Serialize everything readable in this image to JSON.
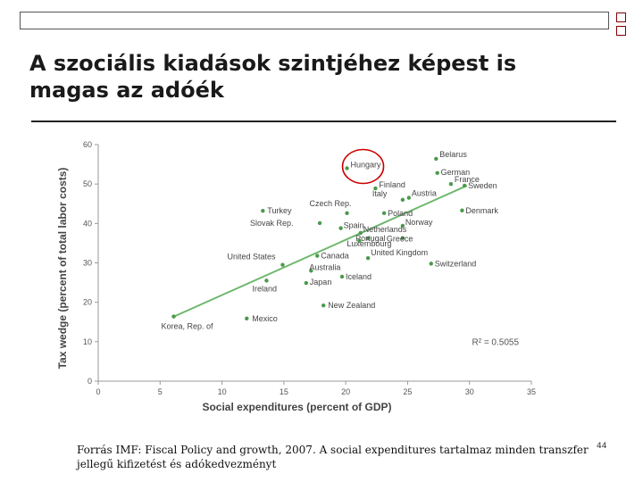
{
  "slide": {
    "title_line1": "A szociális kiadások szintjéhez képest is",
    "title_line2": "magas az adóék",
    "source": "Forrás IMF: Fiscal Policy and growth, 2007. A social expenditures tartalmaz minden transzfer jellegű kifizetést és adókedvezményt",
    "page_number": "44"
  },
  "chart_data": {
    "type": "scatter",
    "xlabel": "Social expenditures (percent of GDP)",
    "ylabel": "Tax wedge (percent of total labor costs)",
    "xlim": [
      0,
      35
    ],
    "ylim": [
      0,
      60
    ],
    "x_ticks": [
      0,
      5,
      10,
      15,
      20,
      25,
      30,
      35
    ],
    "y_ticks": [
      0,
      10,
      20,
      30,
      40,
      50,
      60
    ],
    "annotation": "R² = 0.5055",
    "point_color": "#4a9a4a",
    "trend_color": "#6db86d",
    "highlight_color": "#cc0000",
    "highlight": "Hungary",
    "trendline": {
      "x": [
        6.2,
        29.8
      ],
      "y": [
        16.5,
        49.6
      ]
    },
    "points": [
      {
        "label": "Belarus",
        "x": 27.3,
        "y": 56.4
      },
      {
        "label": "Hungary",
        "x": 20.1,
        "y": 54.0
      },
      {
        "label": "German",
        "x": 27.4,
        "y": 52.8
      },
      {
        "label": "France",
        "x": 28.5,
        "y": 50.0
      },
      {
        "label": "Sweden",
        "x": 29.6,
        "y": 49.6
      },
      {
        "label": "Finland",
        "x": 22.4,
        "y": 48.9
      },
      {
        "label": "Italy",
        "x": 24.6,
        "y": 46.0
      },
      {
        "label": "Austria",
        "x": 25.1,
        "y": 46.5
      },
      {
        "label": "Turkey",
        "x": 13.3,
        "y": 43.2
      },
      {
        "label": "Czech Rep.",
        "x": 20.1,
        "y": 42.6
      },
      {
        "label": "Denmark",
        "x": 29.4,
        "y": 43.3
      },
      {
        "label": "Poland",
        "x": 23.1,
        "y": 42.6
      },
      {
        "label": "Slovak Rep.",
        "x": 17.9,
        "y": 40.1
      },
      {
        "label": "Spain",
        "x": 19.6,
        "y": 38.8
      },
      {
        "label": "Norway",
        "x": 24.6,
        "y": 39.4
      },
      {
        "label": "Netherlands",
        "x": 21.2,
        "y": 37.6
      },
      {
        "label": "Portugal",
        "x": 21.8,
        "y": 36.2
      },
      {
        "label": "Greece",
        "x": 24.6,
        "y": 36.3
      },
      {
        "label": "Luxembourg",
        "x": 21.1,
        "y": 35.6
      },
      {
        "label": "United States",
        "x": 14.9,
        "y": 29.5
      },
      {
        "label": "Canada",
        "x": 17.7,
        "y": 31.8
      },
      {
        "label": "United Kingdom",
        "x": 21.8,
        "y": 31.2
      },
      {
        "label": "Switzerland",
        "x": 26.9,
        "y": 29.8
      },
      {
        "label": "Australia",
        "x": 17.2,
        "y": 28.0
      },
      {
        "label": "Iceland",
        "x": 19.7,
        "y": 26.5
      },
      {
        "label": "Japan",
        "x": 16.8,
        "y": 24.9
      },
      {
        "label": "Ireland",
        "x": 13.6,
        "y": 25.5
      },
      {
        "label": "New Zealand",
        "x": 18.2,
        "y": 19.2
      },
      {
        "label": "Korea, Rep. of",
        "x": 6.1,
        "y": 16.4
      },
      {
        "label": "Mexico",
        "x": 12.0,
        "y": 15.9
      }
    ]
  }
}
